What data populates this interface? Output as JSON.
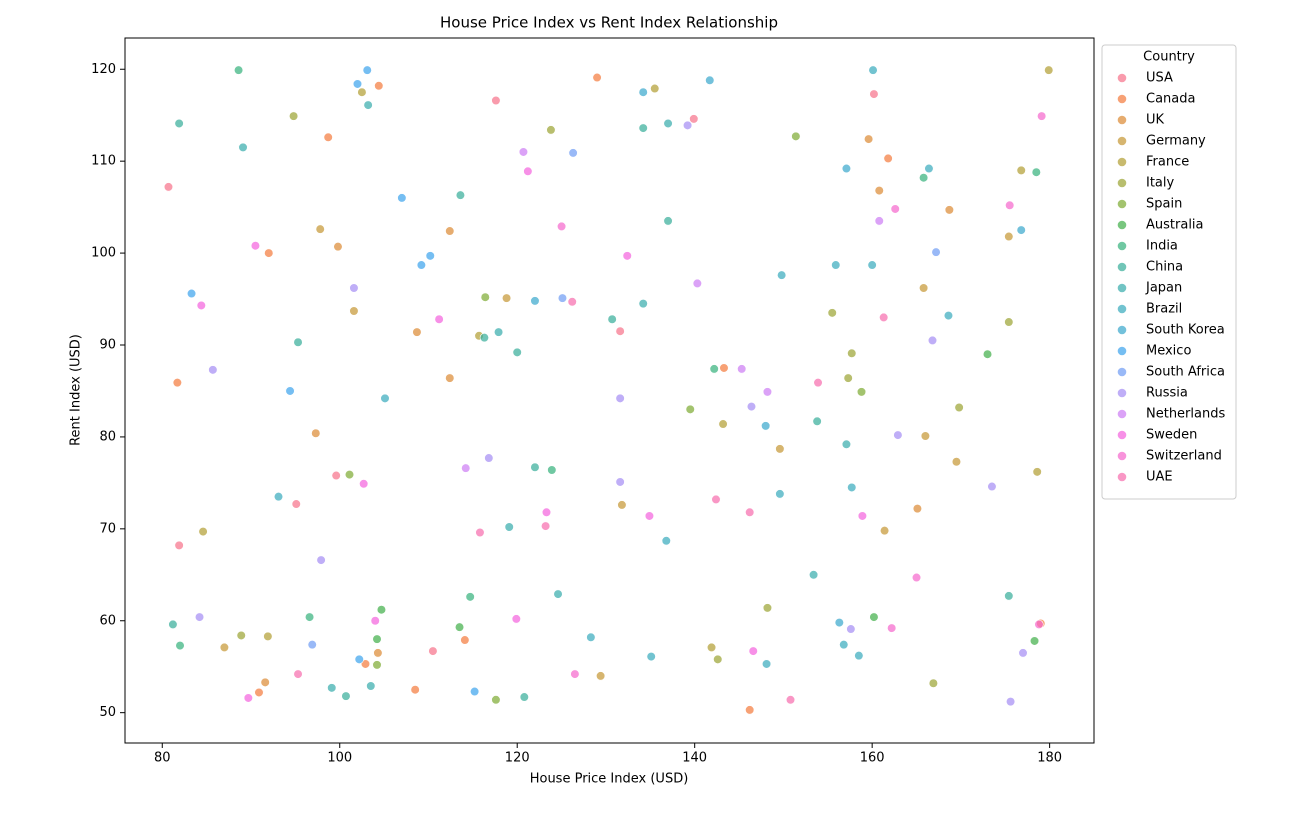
{
  "chart_data": {
    "type": "scatter",
    "title": "House Price Index vs Rent Index Relationship",
    "x_label": "House Price Index (USD)",
    "y_label": "Rent Index (USD)",
    "legend_title": "Country",
    "legend_position": "outside-right",
    "xlim": [
      75.8,
      185
    ],
    "ylim": [
      46.7,
      123.4
    ],
    "xticks": [
      80,
      100,
      120,
      140,
      160,
      180
    ],
    "yticks": [
      50,
      60,
      70,
      80,
      90,
      100,
      110,
      120
    ],
    "series": [
      {
        "name": "USA",
        "color": "#f77189",
        "x": [
          80.7,
          81.9,
          95.1,
          99.6,
          117.6,
          139.9,
          160.2,
          131.6,
          110.5
        ],
        "y": [
          107.2,
          68.2,
          72.7,
          75.8,
          116.6,
          114.6,
          117.3,
          91.5,
          56.7
        ]
      },
      {
        "name": "Canada",
        "color": "#f3793b",
        "x": [
          81.7,
          92.0,
          98.7,
          104.4,
          129.0,
          161.8,
          102.9,
          90.9,
          108.5,
          114.1,
          143.3,
          146.2,
          179.0
        ],
        "y": [
          85.9,
          100.0,
          112.6,
          118.2,
          119.1,
          110.3,
          55.3,
          52.2,
          52.5,
          57.9,
          87.5,
          50.3,
          59.7
        ]
      },
      {
        "name": "UK",
        "color": "#dc8932",
        "x": [
          99.8,
          112.4,
          108.7,
          112.4,
          97.3,
          104.3,
          91.6,
          159.6,
          160.8,
          165.1,
          168.7
        ],
        "y": [
          100.7,
          102.4,
          91.4,
          86.4,
          80.4,
          56.5,
          53.3,
          112.4,
          106.8,
          72.2,
          104.7
        ]
      },
      {
        "name": "Germany",
        "color": "#c59532",
        "x": [
          97.8,
          118.8,
          131.8,
          149.6,
          166.0,
          165.8,
          175.4,
          169.5,
          161.4,
          129.4,
          87.0,
          101.6
        ],
        "y": [
          102.6,
          95.1,
          72.6,
          78.7,
          80.1,
          96.2,
          101.8,
          77.3,
          69.8,
          54.0,
          57.1,
          93.7
        ]
      },
      {
        "name": "France",
        "color": "#b09c31",
        "x": [
          102.5,
          135.5,
          115.7,
          143.2,
          141.9,
          176.8,
          178.6,
          179.9,
          84.6,
          91.9
        ],
        "y": [
          117.5,
          117.9,
          91.0,
          81.4,
          57.1,
          109.0,
          76.2,
          119.9,
          69.7,
          58.3
        ]
      },
      {
        "name": "Italy",
        "color": "#9aa231",
        "x": [
          94.8,
          123.8,
          155.5,
          157.7,
          157.3,
          169.8,
          175.4,
          148.2,
          142.6,
          166.9,
          88.9
        ],
        "y": [
          114.9,
          113.4,
          93.5,
          89.1,
          86.4,
          83.2,
          92.5,
          61.4,
          55.8,
          53.2,
          58.4
        ]
      },
      {
        "name": "Spain",
        "color": "#7ca931",
        "x": [
          116.4,
          101.1,
          151.4,
          139.5,
          158.8,
          104.2,
          117.6
        ],
        "y": [
          95.2,
          75.9,
          112.7,
          83.0,
          84.9,
          55.2,
          51.4
        ]
      },
      {
        "name": "Australia",
        "color": "#3fae47",
        "x": [
          104.7,
          104.2,
          113.5,
          173.0,
          178.3,
          160.2
        ],
        "y": [
          61.2,
          58.0,
          59.3,
          89.0,
          57.8,
          60.4
        ]
      },
      {
        "name": "India",
        "color": "#33b07a",
        "x": [
          88.6,
          96.6,
          114.7,
          123.9,
          142.2,
          165.8,
          178.5,
          82.0
        ],
        "y": [
          119.9,
          60.4,
          62.6,
          76.4,
          87.4,
          108.2,
          108.8,
          57.3
        ]
      },
      {
        "name": "China",
        "color": "#34ad98",
        "x": [
          81.9,
          95.3,
          113.6,
          116.3,
          120.0,
          130.7,
          134.2,
          137.0,
          122.0,
          153.8,
          175.4,
          81.2,
          100.7,
          120.8
        ],
        "y": [
          114.1,
          90.3,
          106.3,
          90.8,
          89.2,
          92.8,
          113.6,
          103.5,
          76.7,
          81.7,
          62.7,
          59.6,
          51.8,
          51.7
        ]
      },
      {
        "name": "Japan",
        "color": "#35abab",
        "x": [
          103.2,
          89.1,
          117.9,
          134.2,
          137.0,
          119.1,
          124.6,
          157.1,
          153.4,
          99.1,
          103.5
        ],
        "y": [
          116.1,
          111.5,
          91.4,
          94.5,
          114.1,
          70.2,
          62.9,
          79.2,
          65.0,
          52.7,
          52.9
        ]
      },
      {
        "name": "Brazil",
        "color": "#36a9bc",
        "x": [
          160.1,
          166.4,
          168.6,
          149.8,
          155.9,
          160.0,
          105.1,
          93.1,
          136.8,
          149.6,
          157.7,
          156.8,
          158.5,
          148.1,
          135.1,
          128.3
        ],
        "y": [
          119.9,
          109.2,
          93.2,
          97.6,
          98.7,
          98.7,
          84.2,
          73.5,
          68.7,
          73.8,
          74.5,
          57.4,
          56.2,
          55.3,
          56.1,
          58.2
        ]
      },
      {
        "name": "South Korea",
        "color": "#38a7cc",
        "x": [
          141.7,
          148.0,
          134.2,
          156.3,
          122.0,
          176.8,
          157.1
        ],
        "y": [
          118.8,
          81.2,
          117.5,
          59.8,
          94.8,
          102.5,
          109.2
        ]
      },
      {
        "name": "Mexico",
        "color": "#3ba3ec",
        "x": [
          83.3,
          94.4,
          110.2,
          109.2,
          107.0,
          102.2,
          115.2,
          103.1,
          102.0
        ],
        "y": [
          95.6,
          85.0,
          99.7,
          98.7,
          106.0,
          55.8,
          52.3,
          119.9,
          118.4
        ]
      },
      {
        "name": "South Africa",
        "color": "#6e9bf4",
        "x": [
          126.3,
          125.1,
          96.9,
          167.2
        ],
        "y": [
          110.9,
          95.1,
          57.4,
          100.1
        ]
      },
      {
        "name": "Russia",
        "color": "#a48cf4",
        "x": [
          85.7,
          101.6,
          97.9,
          84.2,
          116.8,
          131.6,
          131.6,
          146.4,
          139.2,
          162.9,
          166.8,
          157.6,
          177.0,
          175.6,
          173.5
        ],
        "y": [
          87.3,
          96.2,
          66.6,
          60.4,
          77.7,
          84.2,
          75.1,
          83.3,
          113.9,
          80.2,
          90.5,
          59.1,
          56.5,
          51.2,
          74.6
        ]
      },
      {
        "name": "Netherlands",
        "color": "#cc7af4",
        "x": [
          120.7,
          140.3,
          148.2,
          160.8,
          114.2,
          145.3
        ],
        "y": [
          111.0,
          96.7,
          84.9,
          103.5,
          76.6,
          87.4
        ]
      },
      {
        "name": "Sweden",
        "color": "#f461dd",
        "x": [
          121.2,
          90.5,
          84.4,
          111.2,
          132.4,
          102.7,
          123.3,
          134.9,
          158.9,
          119.9,
          146.6,
          89.7,
          104.0
        ],
        "y": [
          108.9,
          100.8,
          94.3,
          92.8,
          99.7,
          74.9,
          71.8,
          71.4,
          71.4,
          60.2,
          56.7,
          51.6,
          60.0
        ]
      },
      {
        "name": "Switzerland",
        "color": "#f565cc",
        "x": [
          162.6,
          179.1,
          175.5,
          125.0,
          165.0,
          162.2,
          178.8,
          126.5
        ],
        "y": [
          104.8,
          114.9,
          105.2,
          102.9,
          64.7,
          59.2,
          59.6,
          54.2
        ]
      },
      {
        "name": "UAE",
        "color": "#f66bad",
        "x": [
          126.2,
          161.3,
          153.9,
          142.4,
          146.2,
          123.2,
          115.8,
          95.3,
          150.8
        ],
        "y": [
          94.7,
          93.0,
          85.9,
          73.2,
          71.8,
          70.3,
          69.6,
          54.2,
          51.4
        ]
      }
    ]
  }
}
